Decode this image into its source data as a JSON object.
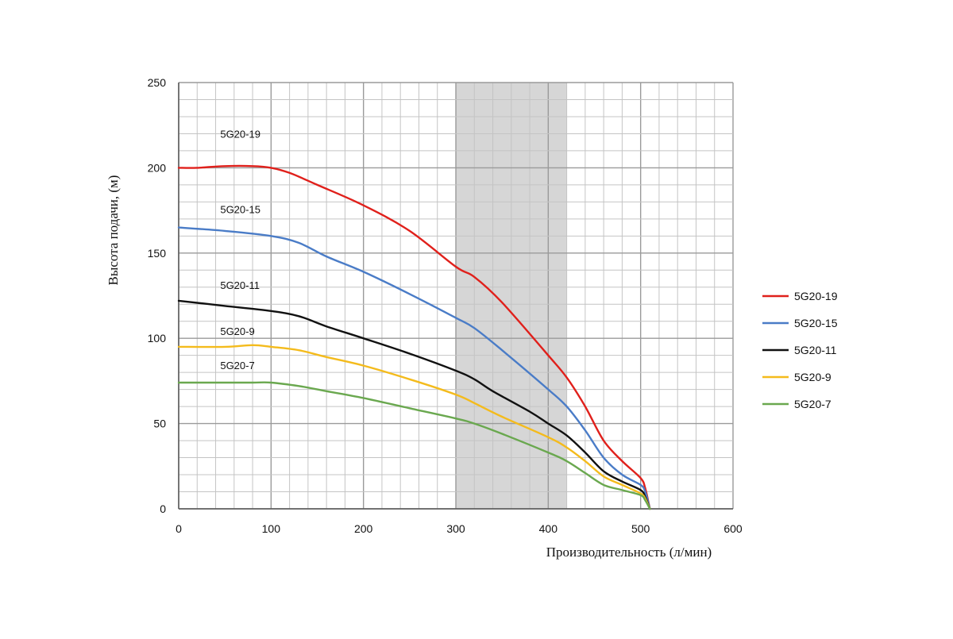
{
  "chart_data": {
    "type": "line",
    "xlabel": "Производительность (л/мин)",
    "ylabel": "Высота подачи, (м)",
    "xlim": [
      0,
      600
    ],
    "ylim": [
      0,
      250
    ],
    "x_ticks": [
      "0",
      "100",
      "200",
      "300",
      "400",
      "500",
      "600"
    ],
    "y_ticks": [
      "0",
      "50",
      "100",
      "150",
      "200",
      "250"
    ],
    "grid": true,
    "legend_position": "right",
    "shaded_range": [
      300,
      420
    ],
    "series": [
      {
        "name": "5G20-19",
        "color": "#e0201b",
        "points": [
          [
            0,
            200
          ],
          [
            20,
            200
          ],
          [
            50,
            201
          ],
          [
            80,
            201
          ],
          [
            100,
            200
          ],
          [
            120,
            197
          ],
          [
            150,
            190
          ],
          [
            200,
            178
          ],
          [
            250,
            163
          ],
          [
            300,
            142
          ],
          [
            320,
            136
          ],
          [
            350,
            121
          ],
          [
            400,
            90
          ],
          [
            420,
            77
          ],
          [
            440,
            60
          ],
          [
            460,
            40
          ],
          [
            480,
            28
          ],
          [
            500,
            18
          ],
          [
            505,
            12
          ],
          [
            510,
            0
          ]
        ]
      },
      {
        "name": "5G20-15",
        "color": "#4a7cc7",
        "points": [
          [
            0,
            165
          ],
          [
            50,
            163
          ],
          [
            100,
            160
          ],
          [
            130,
            156
          ],
          [
            160,
            148
          ],
          [
            200,
            139
          ],
          [
            250,
            126
          ],
          [
            300,
            112
          ],
          [
            320,
            106
          ],
          [
            350,
            93
          ],
          [
            400,
            70
          ],
          [
            420,
            60
          ],
          [
            440,
            46
          ],
          [
            460,
            30
          ],
          [
            480,
            20
          ],
          [
            500,
            14
          ],
          [
            505,
            10
          ],
          [
            510,
            0
          ]
        ]
      },
      {
        "name": "5G20-11",
        "color": "#111111",
        "points": [
          [
            0,
            122
          ],
          [
            50,
            119
          ],
          [
            100,
            116
          ],
          [
            130,
            113
          ],
          [
            160,
            107
          ],
          [
            200,
            100
          ],
          [
            250,
            91
          ],
          [
            300,
            81
          ],
          [
            320,
            76
          ],
          [
            340,
            69
          ],
          [
            380,
            57
          ],
          [
            400,
            50
          ],
          [
            420,
            43
          ],
          [
            440,
            33
          ],
          [
            460,
            22
          ],
          [
            480,
            16
          ],
          [
            500,
            11
          ],
          [
            505,
            7
          ],
          [
            510,
            0
          ]
        ]
      },
      {
        "name": "5G20-9",
        "color": "#f4bb1c",
        "points": [
          [
            0,
            95
          ],
          [
            50,
            95
          ],
          [
            80,
            96
          ],
          [
            100,
            95
          ],
          [
            130,
            93
          ],
          [
            160,
            89
          ],
          [
            200,
            84
          ],
          [
            250,
            76
          ],
          [
            300,
            67
          ],
          [
            320,
            62
          ],
          [
            350,
            54
          ],
          [
            400,
            42
          ],
          [
            420,
            36
          ],
          [
            440,
            28
          ],
          [
            460,
            19
          ],
          [
            480,
            14
          ],
          [
            500,
            9
          ],
          [
            505,
            6
          ],
          [
            510,
            0
          ]
        ]
      },
      {
        "name": "5G20-7",
        "color": "#6aa84f",
        "points": [
          [
            0,
            74
          ],
          [
            50,
            74
          ],
          [
            80,
            74
          ],
          [
            100,
            74
          ],
          [
            130,
            72
          ],
          [
            160,
            69
          ],
          [
            200,
            65
          ],
          [
            250,
            59
          ],
          [
            300,
            53
          ],
          [
            320,
            50
          ],
          [
            350,
            44
          ],
          [
            400,
            33
          ],
          [
            420,
            28
          ],
          [
            440,
            21
          ],
          [
            460,
            14
          ],
          [
            480,
            11
          ],
          [
            500,
            8
          ],
          [
            505,
            5
          ],
          [
            510,
            0
          ]
        ]
      }
    ],
    "inline_labels": [
      "5G20-19",
      "5G20-15",
      "5G20-11",
      "5G20-9",
      "5G20-7"
    ]
  }
}
